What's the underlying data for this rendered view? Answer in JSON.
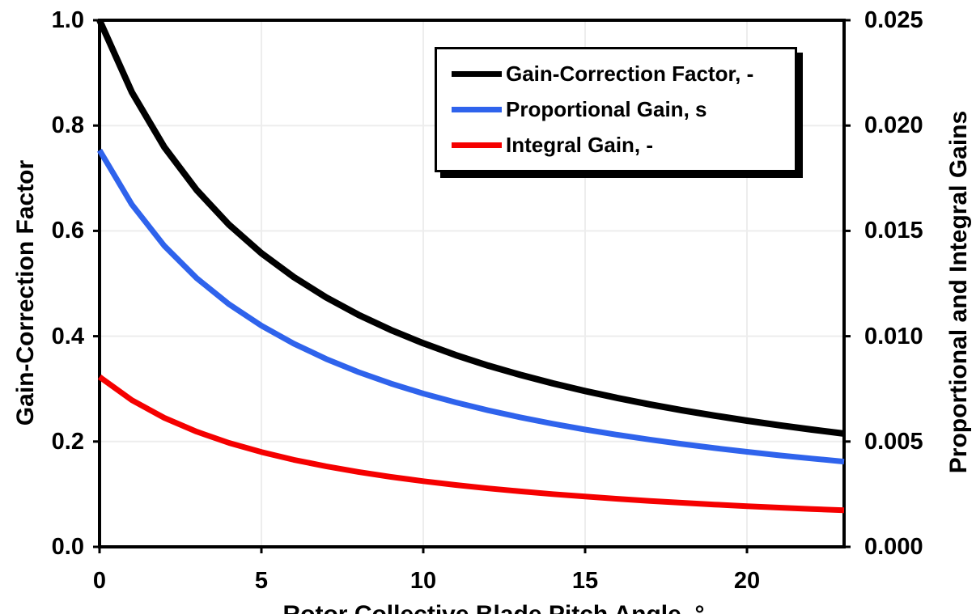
{
  "chart_data": {
    "type": "line",
    "title": "",
    "xlabel": "Rotor Collective Blade Pitch Angle, °",
    "ylabel_left": "Gain-Correction Factor",
    "ylabel_right": "Proportional and Integral Gains",
    "xlim": [
      0,
      23
    ],
    "ylim_left": [
      0.0,
      1.0
    ],
    "ylim_right": [
      0.0,
      0.025
    ],
    "grid": true,
    "gridline_color": "#EDEDED",
    "frame_color": "#000000",
    "legend_position": "top-center",
    "x_ticks": {
      "values": [
        0,
        5,
        10,
        15,
        20
      ],
      "labels": [
        "0",
        "5",
        "10",
        "15",
        "20"
      ]
    },
    "left_ticks": {
      "values": [
        1.0,
        0.8,
        0.6,
        0.4,
        0.2,
        0.0
      ],
      "labels": [
        "1.0",
        "0.8",
        "0.6",
        "0.4",
        "0.2",
        "0.0"
      ]
    },
    "right_ticks": {
      "values": [
        0.025,
        0.02,
        0.015,
        0.01,
        0.005,
        0.0
      ],
      "labels": [
        "0.025",
        "0.020",
        "0.015",
        "0.010",
        "0.005",
        "0.000"
      ]
    },
    "x": [
      0,
      1,
      2,
      3,
      4,
      5,
      6,
      7,
      8,
      9,
      10,
      11,
      12,
      13,
      14,
      15,
      16,
      17,
      18,
      19,
      20,
      21,
      22,
      23
    ],
    "series": [
      {
        "name": "Gain-Correction Factor, -",
        "axis": "left",
        "color": "#000000",
        "stroke_width": 8,
        "values": [
          1.0,
          0.8631,
          0.7591,
          0.6775,
          0.6117,
          0.5576,
          0.5123,
          0.4738,
          0.4406,
          0.4119,
          0.3866,
          0.3642,
          0.3443,
          0.3265,
          0.3104,
          0.2958,
          0.2826,
          0.2705,
          0.2593,
          0.2491,
          0.2396,
          0.2308,
          0.2227,
          0.2151
        ]
      },
      {
        "name": "Proportional Gain, s",
        "axis": "right",
        "color": "#2F63EC",
        "stroke_width": 7,
        "values": [
          0.018827,
          0.016248,
          0.014291,
          0.012755,
          0.011517,
          0.010498,
          0.009645,
          0.00892,
          0.008296,
          0.007754,
          0.007278,
          0.006858,
          0.006483,
          0.006147,
          0.005844,
          0.00557,
          0.00532,
          0.005092,
          0.004882,
          0.004689,
          0.004511,
          0.004345,
          0.004192,
          0.004049
        ]
      },
      {
        "name": "Integral Gain, -",
        "axis": "right",
        "color": "#F50000",
        "stroke_width": 7,
        "values": [
          0.008069,
          0.006964,
          0.006125,
          0.005467,
          0.004936,
          0.004499,
          0.004133,
          0.003823,
          0.003555,
          0.003323,
          0.003119,
          0.002939,
          0.002778,
          0.002634,
          0.002505,
          0.002387,
          0.00228,
          0.002182,
          0.002092,
          0.00201,
          0.001933,
          0.001862,
          0.001797,
          0.001735
        ]
      }
    ]
  }
}
